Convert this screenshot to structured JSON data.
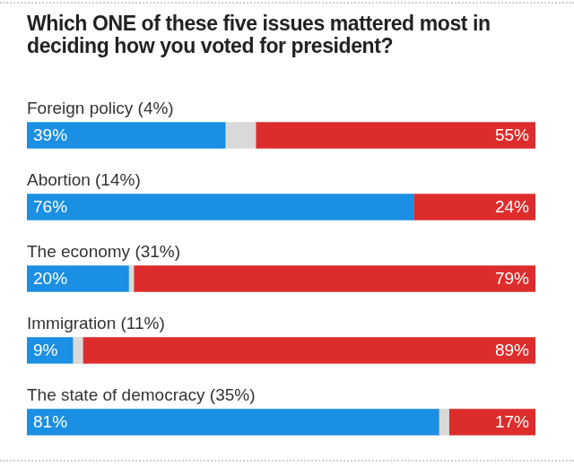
{
  "chart_data": {
    "type": "bar",
    "orientation": "horizontal",
    "stacked": true,
    "title": "Which ONE of these five issues mattered most in deciding how you voted for president?",
    "categories": [
      "Foreign policy (4%)",
      "Abortion (14%)",
      "The economy (31%)",
      "Immigration (11%)",
      "The state of democracy (35%)"
    ],
    "series": [
      {
        "color": "#1a8fe3",
        "values": [
          39,
          76,
          20,
          9,
          81
        ],
        "value_labels": [
          "39%",
          "76%",
          "20%",
          "9%",
          "81%"
        ]
      },
      {
        "color": "#d9d9d9",
        "values": [
          6,
          0,
          1,
          2,
          2
        ],
        "data_labels": false
      },
      {
        "color": "#dd2c2c",
        "values": [
          55,
          24,
          79,
          89,
          17
        ],
        "value_labels": [
          "55%",
          "24%",
          "79%",
          "89%",
          "17%"
        ]
      }
    ],
    "xlim": [
      0,
      100
    ],
    "grid": false,
    "tick_labels": false,
    "legend": false,
    "data_labels": true
  }
}
